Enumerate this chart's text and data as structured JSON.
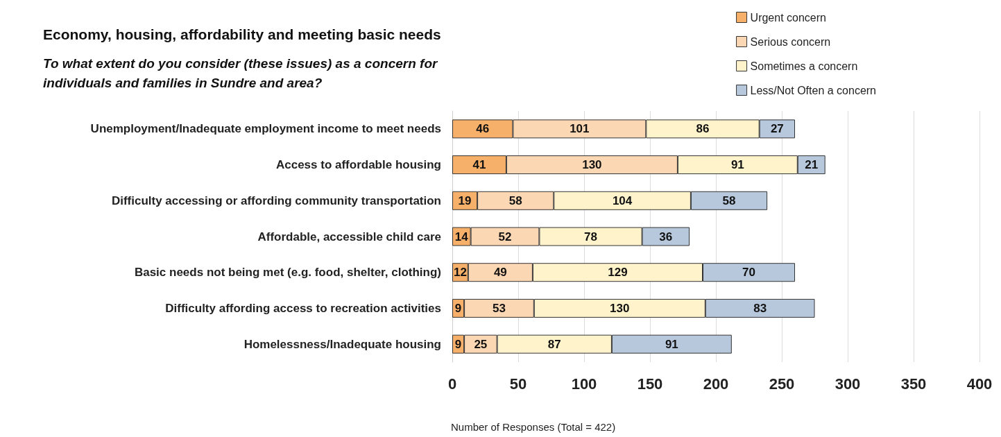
{
  "chart_data": {
    "type": "bar",
    "orientation": "horizontal",
    "stacked": true,
    "title": "Economy, housing, affordability and meeting basic needs",
    "subtitle": "To what extent do you consider (these issues) as a concern for\nindividuals and families in Sundre and area?",
    "xlabel": "Number of Responses (Total = 422)",
    "categories": [
      "Unemployment/Inadequate employment income to meet needs",
      "Access to affordable housing",
      "Difficulty accessing or affording community transportation",
      "Affordable, accessible child care",
      "Basic needs not being met (e.g. food, shelter, clothing)",
      "Difficulty affording access to recreation activities",
      "Homelessness/Inadequate housing"
    ],
    "series": [
      {
        "name": "Urgent concern",
        "color": "#f7b06a",
        "values": [
          46,
          41,
          19,
          14,
          12,
          9,
          9
        ]
      },
      {
        "name": "Serious concern",
        "color": "#fcd7b3",
        "values": [
          101,
          130,
          58,
          52,
          49,
          53,
          25
        ]
      },
      {
        "name": "Sometimes a concern",
        "color": "#fff3cc",
        "values": [
          86,
          91,
          104,
          78,
          129,
          130,
          87
        ]
      },
      {
        "name": "Less/Not Often a concern",
        "color": "#b8c8dc",
        "values": [
          27,
          21,
          58,
          36,
          70,
          83,
          91
        ]
      }
    ],
    "xlim": [
      0,
      400
    ],
    "xticks": [
      0,
      50,
      100,
      150,
      200,
      250,
      300,
      350,
      400
    ],
    "grid": "x",
    "legend": "top right",
    "data_labels": true
  }
}
